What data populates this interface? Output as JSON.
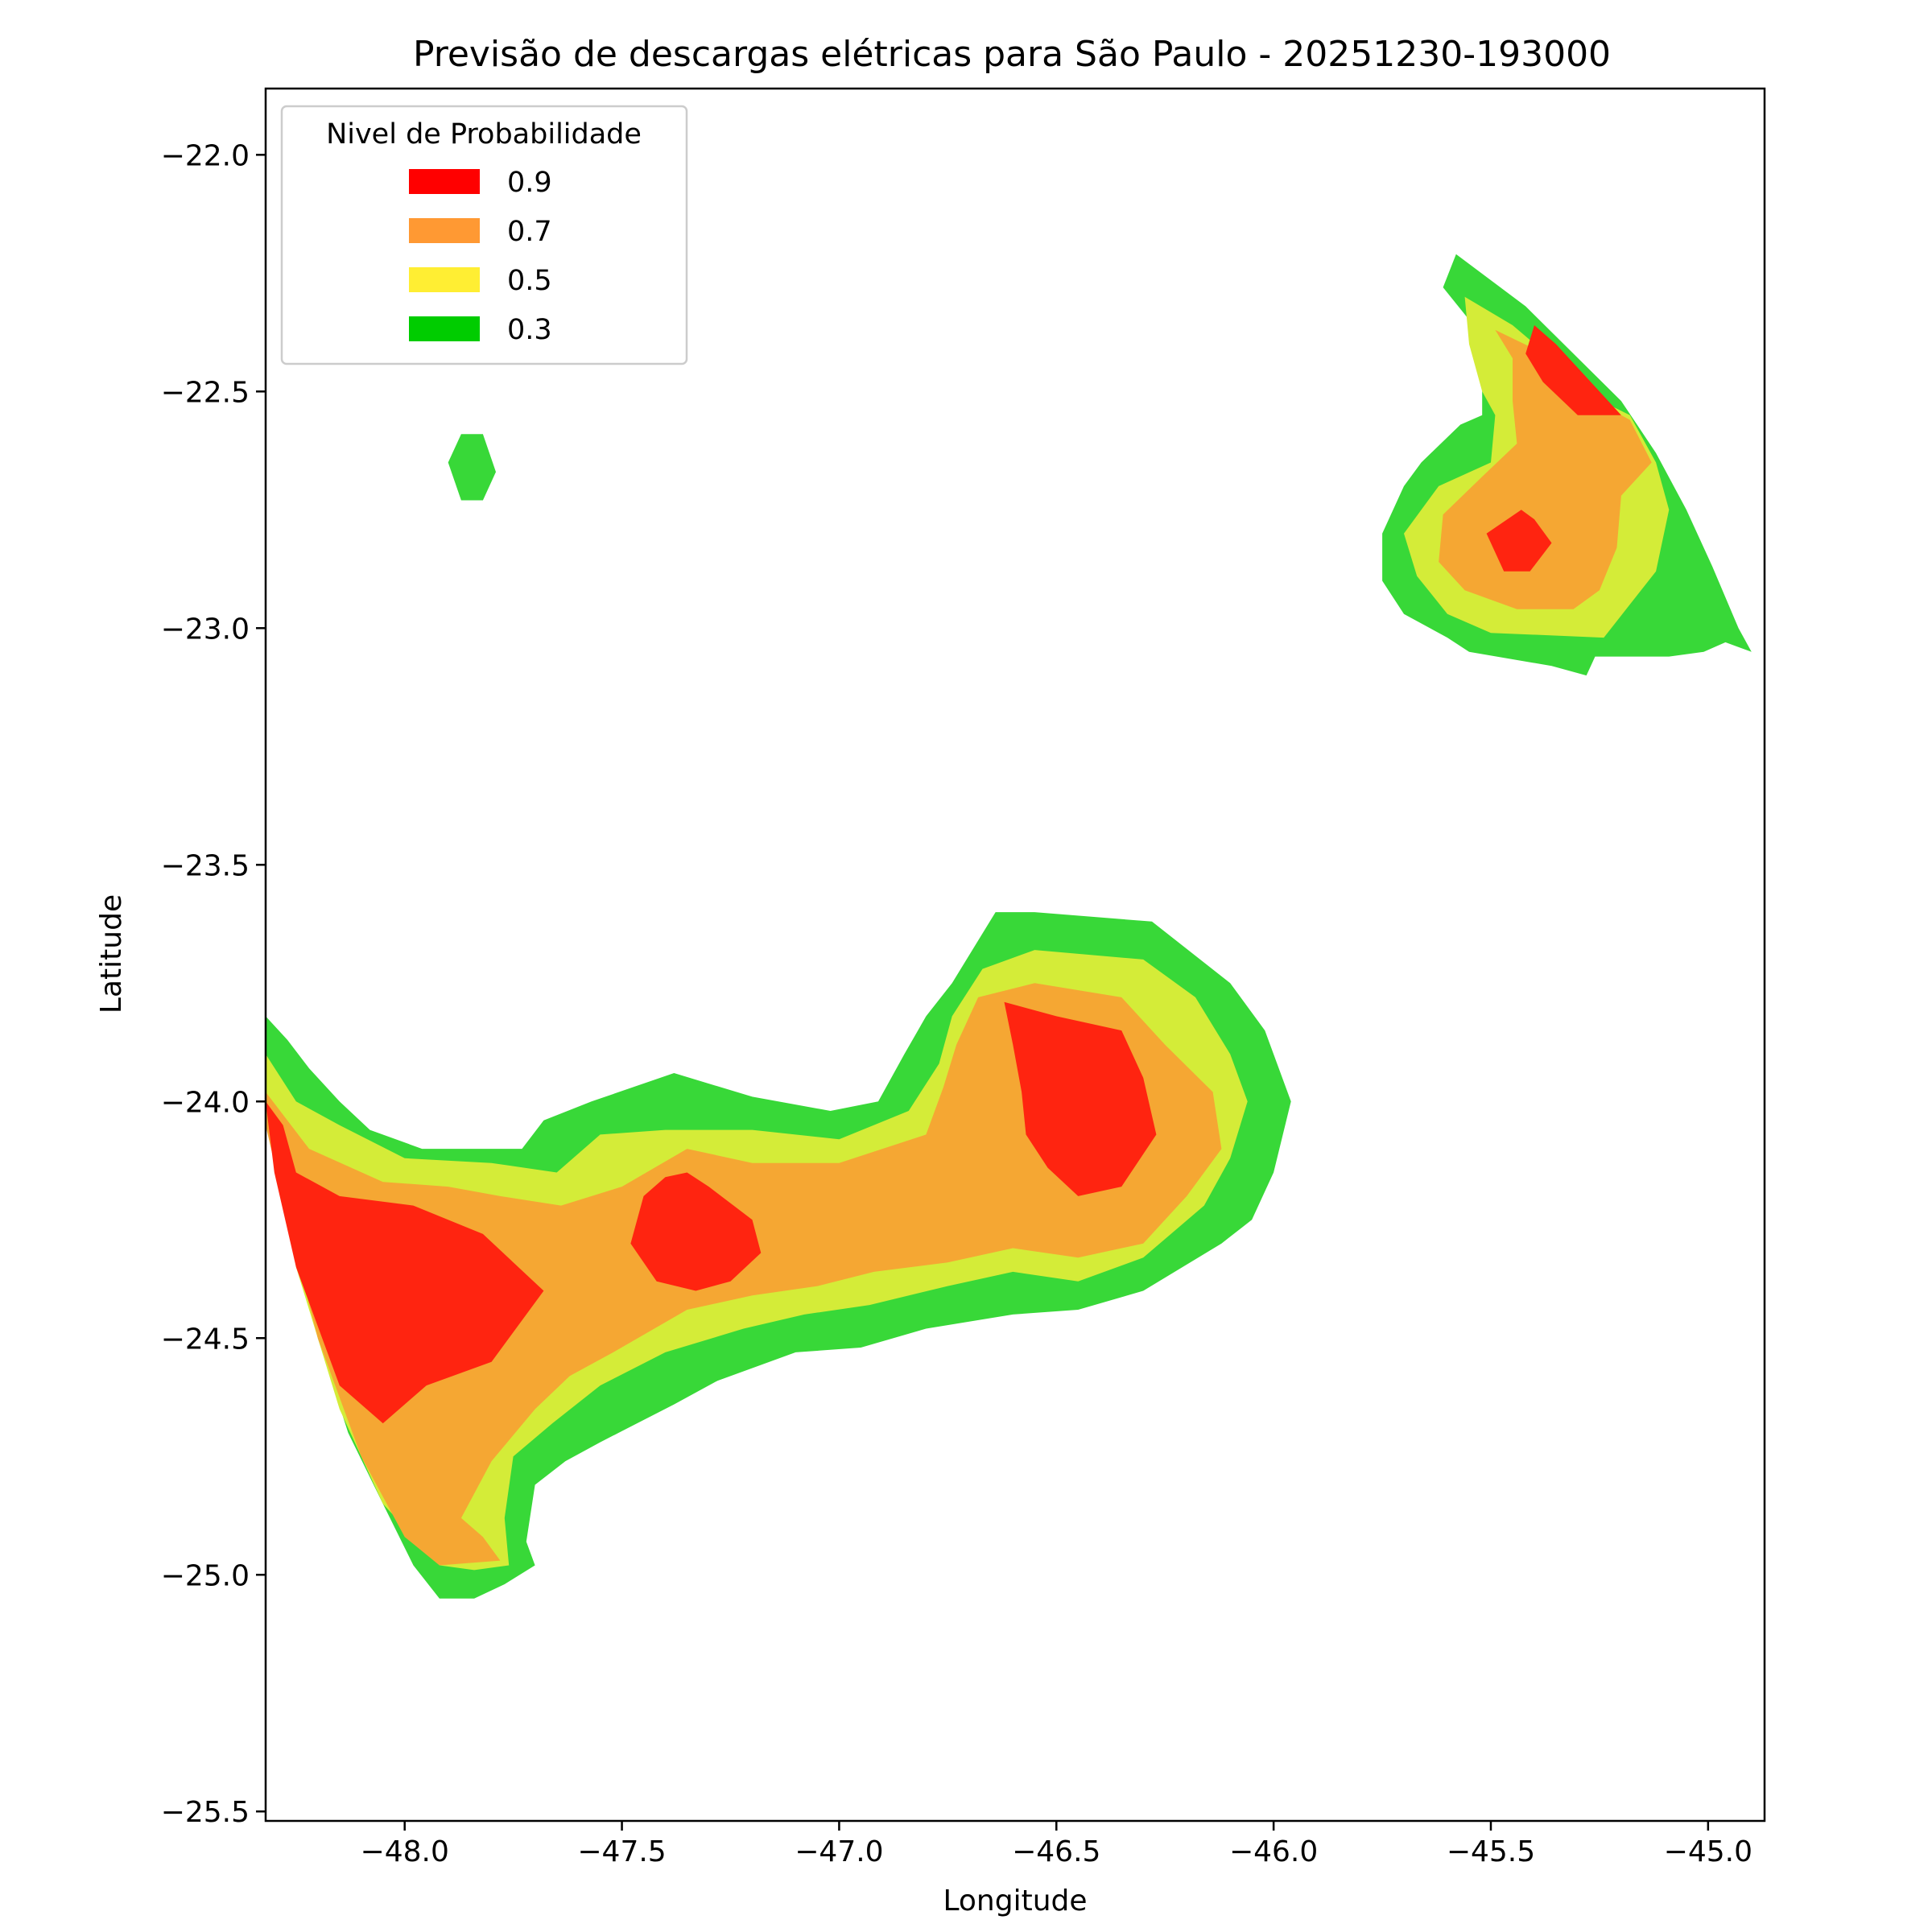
{
  "chart_data": {
    "type": "contour",
    "title": "Previsão de descargas elétricas para São Paulo - 20251230-193000",
    "xlabel": "Longitude",
    "ylabel": "Latitude",
    "xlim": [
      -48.32,
      -44.87
    ],
    "ylim": [
      -25.52,
      -21.86
    ],
    "xticks": [
      -48.0,
      -47.5,
      -47.0,
      -46.5,
      -46.0,
      -45.5,
      -45.0
    ],
    "xtick_labels": [
      "−48.0",
      "−47.5",
      "−47.0",
      "−46.5",
      "−46.0",
      "−45.5",
      "−45.0"
    ],
    "yticks": [
      -22.0,
      -22.5,
      -23.0,
      -23.5,
      -24.0,
      -24.5,
      -25.0,
      -25.5
    ],
    "ytick_labels": [
      "−22.0",
      "−22.5",
      "−23.0",
      "−23.5",
      "−24.0",
      "−24.5",
      "−25.0",
      "−25.5"
    ],
    "legend": {
      "title": "Nivel de Probabilidade",
      "placement": "top-left",
      "entries": [
        {
          "label": "0.9",
          "color": "#ff0000"
        },
        {
          "label": "0.7",
          "color": "#ff9933"
        },
        {
          "label": "0.5",
          "color": "#ffee33"
        },
        {
          "label": "0.3",
          "color": "#00cc00"
        }
      ]
    },
    "levels": [
      {
        "level": "0.3",
        "fill": "#38d838"
      },
      {
        "level": "0.5",
        "fill": "#d4ec38"
      },
      {
        "level": "0.7",
        "fill": "#f5a733"
      },
      {
        "level": "0.9",
        "fill": "#ff2410"
      }
    ],
    "regions": [
      {
        "level": "0.3",
        "points": [
          [
            -47.87,
            -22.59
          ],
          [
            -47.82,
            -22.59
          ],
          [
            -47.79,
            -22.67
          ],
          [
            -47.82,
            -22.73
          ],
          [
            -47.87,
            -22.73
          ],
          [
            -47.9,
            -22.65
          ]
        ]
      },
      {
        "level": "0.3",
        "points": [
          [
            -45.58,
            -22.21
          ],
          [
            -45.42,
            -22.32
          ],
          [
            -45.31,
            -22.42
          ],
          [
            -45.2,
            -22.52
          ],
          [
            -45.12,
            -22.63
          ],
          [
            -45.05,
            -22.75
          ],
          [
            -44.99,
            -22.87
          ],
          [
            -44.93,
            -23.0
          ],
          [
            -44.9,
            -23.05
          ],
          [
            -44.96,
            -23.03
          ],
          [
            -45.01,
            -23.05
          ],
          [
            -45.09,
            -23.06
          ],
          [
            -45.26,
            -23.06
          ],
          [
            -45.28,
            -23.1
          ],
          [
            -45.36,
            -23.08
          ],
          [
            -45.55,
            -23.05
          ],
          [
            -45.6,
            -23.02
          ],
          [
            -45.7,
            -22.97
          ],
          [
            -45.75,
            -22.9
          ],
          [
            -45.75,
            -22.8
          ],
          [
            -45.7,
            -22.7
          ],
          [
            -45.66,
            -22.65
          ],
          [
            -45.57,
            -22.57
          ],
          [
            -45.52,
            -22.55
          ],
          [
            -45.52,
            -22.45
          ],
          [
            -45.54,
            -22.36
          ],
          [
            -45.61,
            -22.28
          ]
        ]
      },
      {
        "level": "0.5",
        "points": [
          [
            -45.56,
            -22.3
          ],
          [
            -45.45,
            -22.36
          ],
          [
            -45.36,
            -22.43
          ],
          [
            -45.29,
            -22.5
          ],
          [
            -45.18,
            -22.55
          ],
          [
            -45.12,
            -22.65
          ],
          [
            -45.09,
            -22.75
          ],
          [
            -45.12,
            -22.88
          ],
          [
            -45.18,
            -22.95
          ],
          [
            -45.24,
            -23.02
          ],
          [
            -45.5,
            -23.01
          ],
          [
            -45.6,
            -22.97
          ],
          [
            -45.67,
            -22.89
          ],
          [
            -45.7,
            -22.8
          ],
          [
            -45.62,
            -22.7
          ],
          [
            -45.5,
            -22.65
          ],
          [
            -45.49,
            -22.55
          ],
          [
            -45.52,
            -22.5
          ],
          [
            -45.55,
            -22.4
          ]
        ]
      },
      {
        "level": "0.7",
        "points": [
          [
            -45.49,
            -22.37
          ],
          [
            -45.45,
            -22.43
          ],
          [
            -45.45,
            -22.52
          ],
          [
            -45.44,
            -22.61
          ],
          [
            -45.52,
            -22.68
          ],
          [
            -45.61,
            -22.76
          ],
          [
            -45.62,
            -22.86
          ],
          [
            -45.56,
            -22.92
          ],
          [
            -45.44,
            -22.96
          ],
          [
            -45.31,
            -22.96
          ],
          [
            -45.25,
            -22.92
          ],
          [
            -45.21,
            -22.83
          ],
          [
            -45.2,
            -22.72
          ],
          [
            -45.13,
            -22.65
          ],
          [
            -45.18,
            -22.56
          ],
          [
            -45.32,
            -22.49
          ],
          [
            -45.4,
            -22.41
          ]
        ]
      },
      {
        "level": "0.9",
        "points": [
          [
            -45.4,
            -22.36
          ],
          [
            -45.35,
            -22.4
          ],
          [
            -45.25,
            -22.5
          ],
          [
            -45.2,
            -22.55
          ],
          [
            -45.3,
            -22.55
          ],
          [
            -45.38,
            -22.48
          ],
          [
            -45.42,
            -22.42
          ]
        ]
      },
      {
        "level": "0.9",
        "points": [
          [
            -45.43,
            -22.75
          ],
          [
            -45.51,
            -22.8
          ],
          [
            -45.47,
            -22.88
          ],
          [
            -45.41,
            -22.88
          ],
          [
            -45.36,
            -22.82
          ],
          [
            -45.4,
            -22.77
          ]
        ]
      },
      {
        "level": "0.3",
        "points": [
          [
            -48.32,
            -23.82
          ],
          [
            -48.27,
            -23.87
          ],
          [
            -48.22,
            -23.93
          ],
          [
            -48.15,
            -24.0
          ],
          [
            -48.08,
            -24.06
          ],
          [
            -47.96,
            -24.1
          ],
          [
            -47.84,
            -24.1
          ],
          [
            -47.73,
            -24.1
          ],
          [
            -47.68,
            -24.04
          ],
          [
            -47.57,
            -24.0
          ],
          [
            -47.38,
            -23.94
          ],
          [
            -47.2,
            -23.99
          ],
          [
            -47.02,
            -24.02
          ],
          [
            -46.91,
            -24.0
          ],
          [
            -46.85,
            -23.9
          ],
          [
            -46.8,
            -23.82
          ],
          [
            -46.74,
            -23.75
          ],
          [
            -46.64,
            -23.6
          ],
          [
            -46.55,
            -23.6
          ],
          [
            -46.28,
            -23.62
          ],
          [
            -46.1,
            -23.75
          ],
          [
            -46.02,
            -23.85
          ],
          [
            -45.96,
            -24.0
          ],
          [
            -46.0,
            -24.15
          ],
          [
            -46.05,
            -24.25
          ],
          [
            -46.12,
            -24.3
          ],
          [
            -46.3,
            -24.4
          ],
          [
            -46.45,
            -24.44
          ],
          [
            -46.6,
            -24.45
          ],
          [
            -46.8,
            -24.48
          ],
          [
            -46.95,
            -24.52
          ],
          [
            -47.1,
            -24.53
          ],
          [
            -47.28,
            -24.59
          ],
          [
            -47.38,
            -24.64
          ],
          [
            -47.55,
            -24.72
          ],
          [
            -47.63,
            -24.76
          ],
          [
            -47.7,
            -24.81
          ],
          [
            -47.72,
            -24.93
          ],
          [
            -47.7,
            -24.98
          ],
          [
            -47.77,
            -25.02
          ],
          [
            -47.84,
            -25.05
          ],
          [
            -47.92,
            -25.05
          ],
          [
            -47.98,
            -24.98
          ],
          [
            -48.05,
            -24.85
          ],
          [
            -48.13,
            -24.7
          ],
          [
            -48.2,
            -24.5
          ],
          [
            -48.25,
            -24.3
          ],
          [
            -48.3,
            -24.1
          ],
          [
            -48.32,
            -24.0
          ]
        ]
      },
      {
        "level": "0.5",
        "points": [
          [
            -48.32,
            -23.9
          ],
          [
            -48.25,
            -24.0
          ],
          [
            -48.15,
            -24.05
          ],
          [
            -48.0,
            -24.12
          ],
          [
            -47.8,
            -24.13
          ],
          [
            -47.65,
            -24.15
          ],
          [
            -47.55,
            -24.07
          ],
          [
            -47.4,
            -24.06
          ],
          [
            -47.2,
            -24.06
          ],
          [
            -47.0,
            -24.08
          ],
          [
            -46.84,
            -24.02
          ],
          [
            -46.77,
            -23.92
          ],
          [
            -46.74,
            -23.82
          ],
          [
            -46.67,
            -23.72
          ],
          [
            -46.55,
            -23.68
          ],
          [
            -46.3,
            -23.7
          ],
          [
            -46.18,
            -23.78
          ],
          [
            -46.1,
            -23.9
          ],
          [
            -46.06,
            -24.0
          ],
          [
            -46.1,
            -24.12
          ],
          [
            -46.16,
            -24.22
          ],
          [
            -46.3,
            -24.33
          ],
          [
            -46.45,
            -24.38
          ],
          [
            -46.6,
            -24.36
          ],
          [
            -46.75,
            -24.39
          ],
          [
            -46.93,
            -24.43
          ],
          [
            -47.08,
            -24.45
          ],
          [
            -47.22,
            -24.48
          ],
          [
            -47.4,
            -24.53
          ],
          [
            -47.55,
            -24.6
          ],
          [
            -47.66,
            -24.68
          ],
          [
            -47.75,
            -24.75
          ],
          [
            -47.77,
            -24.88
          ],
          [
            -47.76,
            -24.98
          ],
          [
            -47.84,
            -24.99
          ],
          [
            -47.92,
            -24.98
          ],
          [
            -48.05,
            -24.85
          ],
          [
            -48.15,
            -24.65
          ],
          [
            -48.25,
            -24.35
          ],
          [
            -48.3,
            -24.1
          ],
          [
            -48.32,
            -24.0
          ]
        ]
      },
      {
        "level": "0.7",
        "points": [
          [
            -48.32,
            -23.98
          ],
          [
            -48.22,
            -24.1
          ],
          [
            -48.05,
            -24.17
          ],
          [
            -47.9,
            -24.18
          ],
          [
            -47.78,
            -24.2
          ],
          [
            -47.64,
            -24.22
          ],
          [
            -47.5,
            -24.18
          ],
          [
            -47.35,
            -24.1
          ],
          [
            -47.2,
            -24.13
          ],
          [
            -47.0,
            -24.13
          ],
          [
            -46.8,
            -24.07
          ],
          [
            -46.76,
            -23.97
          ],
          [
            -46.73,
            -23.88
          ],
          [
            -46.68,
            -23.78
          ],
          [
            -46.55,
            -23.75
          ],
          [
            -46.35,
            -23.78
          ],
          [
            -46.25,
            -23.88
          ],
          [
            -46.14,
            -23.98
          ],
          [
            -46.12,
            -24.1
          ],
          [
            -46.2,
            -24.2
          ],
          [
            -46.3,
            -24.3
          ],
          [
            -46.45,
            -24.33
          ],
          [
            -46.6,
            -24.31
          ],
          [
            -46.75,
            -24.34
          ],
          [
            -46.92,
            -24.36
          ],
          [
            -47.05,
            -24.39
          ],
          [
            -47.2,
            -24.41
          ],
          [
            -47.35,
            -24.44
          ],
          [
            -47.52,
            -24.53
          ],
          [
            -47.62,
            -24.58
          ],
          [
            -47.7,
            -24.65
          ],
          [
            -47.8,
            -24.76
          ],
          [
            -47.87,
            -24.88
          ],
          [
            -47.82,
            -24.92
          ],
          [
            -47.78,
            -24.97
          ],
          [
            -47.92,
            -24.98
          ],
          [
            -48.0,
            -24.92
          ],
          [
            -48.1,
            -24.75
          ],
          [
            -48.2,
            -24.5
          ],
          [
            -48.27,
            -24.25
          ],
          [
            -48.32,
            -24.05
          ]
        ]
      },
      {
        "level": "0.9",
        "points": [
          [
            -48.32,
            -24.0
          ],
          [
            -48.28,
            -24.05
          ],
          [
            -48.25,
            -24.15
          ],
          [
            -48.15,
            -24.2
          ],
          [
            -47.98,
            -24.22
          ],
          [
            -47.82,
            -24.28
          ],
          [
            -47.68,
            -24.4
          ],
          [
            -47.8,
            -24.55
          ],
          [
            -47.95,
            -24.6
          ],
          [
            -48.05,
            -24.68
          ],
          [
            -48.15,
            -24.6
          ],
          [
            -48.25,
            -24.35
          ],
          [
            -48.3,
            -24.15
          ]
        ]
      },
      {
        "level": "0.9",
        "points": [
          [
            -47.35,
            -24.15
          ],
          [
            -47.3,
            -24.18
          ],
          [
            -47.2,
            -24.25
          ],
          [
            -47.18,
            -24.32
          ],
          [
            -47.25,
            -24.38
          ],
          [
            -47.33,
            -24.4
          ],
          [
            -47.42,
            -24.38
          ],
          [
            -47.48,
            -24.3
          ],
          [
            -47.45,
            -24.2
          ],
          [
            -47.4,
            -24.16
          ]
        ]
      },
      {
        "level": "0.9",
        "points": [
          [
            -46.62,
            -23.79
          ],
          [
            -46.5,
            -23.82
          ],
          [
            -46.35,
            -23.85
          ],
          [
            -46.3,
            -23.95
          ],
          [
            -46.27,
            -24.07
          ],
          [
            -46.35,
            -24.18
          ],
          [
            -46.45,
            -24.2
          ],
          [
            -46.52,
            -24.14
          ],
          [
            -46.57,
            -24.07
          ],
          [
            -46.58,
            -23.98
          ],
          [
            -46.6,
            -23.88
          ]
        ]
      }
    ]
  }
}
